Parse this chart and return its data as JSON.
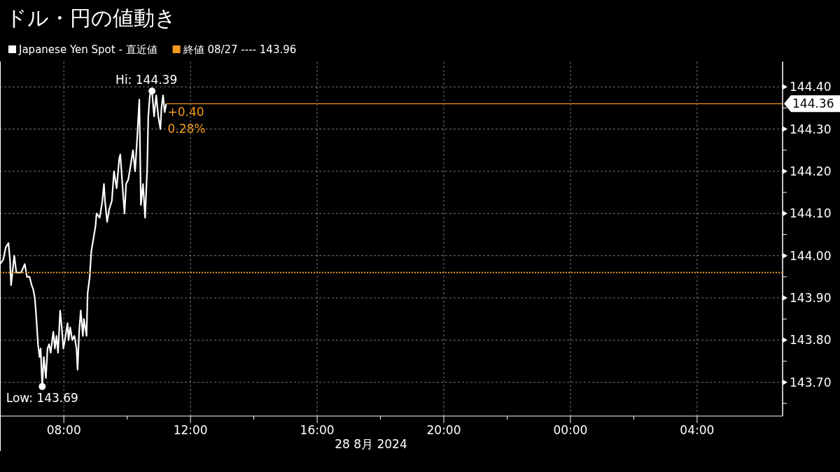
{
  "chart_data": {
    "type": "line",
    "title": "ドル・円の値動き",
    "xlabel": "28 8月 2024",
    "x": [
      "2024-08-28T05:59",
      "2024-08-28T06:05",
      "2024-08-28T06:10",
      "2024-08-28T06:15",
      "2024-08-28T06:18",
      "2024-08-28T06:20",
      "2024-08-28T06:26",
      "2024-08-28T06:30",
      "2024-08-28T06:39",
      "2024-08-28T06:46",
      "2024-08-28T06:50",
      "2024-08-28T06:55",
      "2024-08-28T06:59",
      "2024-08-28T07:02",
      "2024-08-28T07:05",
      "2024-08-28T07:08",
      "2024-08-28T07:11",
      "2024-08-28T07:14",
      "2024-08-28T07:16",
      "2024-08-28T07:19",
      "2024-08-28T07:22",
      "2024-08-28T07:26",
      "2024-08-28T07:29",
      "2024-08-28T07:32",
      "2024-08-28T07:35",
      "2024-08-28T07:40",
      "2024-08-28T07:43",
      "2024-08-28T07:46",
      "2024-08-28T07:49",
      "2024-08-28T07:53",
      "2024-08-28T07:56",
      "2024-08-28T07:59",
      "2024-08-28T08:02",
      "2024-08-28T08:07",
      "2024-08-28T08:09",
      "2024-08-28T08:12",
      "2024-08-28T08:16",
      "2024-08-28T08:20",
      "2024-08-28T08:24",
      "2024-08-28T08:26",
      "2024-08-28T08:29",
      "2024-08-28T08:32",
      "2024-08-28T08:36",
      "2024-08-28T08:38",
      "2024-08-28T08:43",
      "2024-08-28T08:45",
      "2024-08-28T08:49",
      "2024-08-28T08:52",
      "2024-08-28T08:56",
      "2024-08-28T09:00",
      "2024-08-28T09:02",
      "2024-08-28T09:08",
      "2024-08-28T09:13",
      "2024-08-28T09:16",
      "2024-08-28T09:18",
      "2024-08-28T09:22",
      "2024-08-28T09:26",
      "2024-08-28T09:31",
      "2024-08-28T09:35",
      "2024-08-28T09:40",
      "2024-08-28T09:45",
      "2024-08-28T09:47",
      "2024-08-28T09:52",
      "2024-08-28T09:55",
      "2024-08-28T09:58",
      "2024-08-28T10:02",
      "2024-08-28T10:06",
      "2024-08-28T10:11",
      "2024-08-28T10:15",
      "2024-08-28T10:19",
      "2024-08-28T10:23",
      "2024-08-28T10:26",
      "2024-08-28T10:30",
      "2024-08-28T10:34",
      "2024-08-28T10:38",
      "2024-08-28T10:40",
      "2024-08-28T10:43",
      "2024-08-28T10:47",
      "2024-08-28T10:51",
      "2024-08-28T10:55",
      "2024-08-28T10:59",
      "2024-08-28T11:03",
      "2024-08-28T11:05",
      "2024-08-28T11:08",
      "2024-08-28T11:11",
      "2024-08-28T11:14"
    ],
    "series": [
      {
        "name": "Japanese Yen Spot - 直近値",
        "color": "#ffffff",
        "values": [
          143.98,
          143.99,
          144.02,
          144.03,
          143.99,
          143.93,
          144.0,
          143.96,
          143.96,
          143.98,
          143.95,
          143.95,
          143.93,
          143.92,
          143.9,
          143.85,
          143.79,
          143.76,
          143.78,
          143.69,
          143.76,
          143.71,
          143.78,
          143.79,
          143.77,
          143.82,
          143.78,
          143.81,
          143.77,
          143.87,
          143.83,
          143.78,
          143.8,
          143.84,
          143.8,
          143.83,
          143.8,
          143.81,
          143.78,
          143.73,
          143.82,
          143.87,
          143.81,
          143.85,
          143.81,
          143.91,
          143.95,
          144.01,
          144.04,
          144.07,
          144.1,
          144.09,
          144.13,
          144.17,
          144.13,
          144.08,
          144.11,
          144.13,
          144.2,
          144.16,
          144.23,
          144.24,
          144.15,
          144.1,
          144.17,
          144.18,
          144.21,
          144.25,
          144.2,
          144.28,
          144.37,
          144.12,
          144.17,
          144.09,
          144.21,
          144.33,
          144.38,
          144.39,
          144.33,
          144.38,
          144.33,
          144.3,
          144.35,
          144.38,
          144.34,
          144.36
        ]
      }
    ],
    "xlim": [
      "2024-08-28T05:59",
      "2024-08-29T06:42"
    ],
    "ylim": [
      143.62,
      144.46
    ],
    "xticks": [
      {
        "value": "2024-08-28T08:00",
        "label": "08:00"
      },
      {
        "value": "2024-08-28T10:00",
        "label": null
      },
      {
        "value": "2024-08-28T12:00",
        "label": "12:00"
      },
      {
        "value": "2024-08-28T14:00",
        "label": null
      },
      {
        "value": "2024-08-28T16:00",
        "label": "16:00"
      },
      {
        "value": "2024-08-28T18:00",
        "label": null
      },
      {
        "value": "2024-08-28T20:00",
        "label": "20:00"
      },
      {
        "value": "2024-08-28T22:00",
        "label": null
      },
      {
        "value": "2024-08-29T00:00",
        "label": "00:00"
      },
      {
        "value": "2024-08-29T02:00",
        "label": null
      },
      {
        "value": "2024-08-29T04:00",
        "label": "04:00"
      }
    ],
    "yticks": [
      {
        "value": 144.4,
        "label": "144.40"
      },
      {
        "value": 144.35,
        "label": null
      },
      {
        "value": 144.3,
        "label": "144.30"
      },
      {
        "value": 144.25,
        "label": null
      },
      {
        "value": 144.2,
        "label": "144.20"
      },
      {
        "value": 144.15,
        "label": null
      },
      {
        "value": 144.1,
        "label": "144.10"
      },
      {
        "value": 144.05,
        "label": null
      },
      {
        "value": 144.0,
        "label": "144.00"
      },
      {
        "value": 143.95,
        "label": null
      },
      {
        "value": 143.9,
        "label": "143.90"
      },
      {
        "value": 143.85,
        "label": null
      },
      {
        "value": 143.8,
        "label": "143.80"
      },
      {
        "value": 143.75,
        "label": null
      },
      {
        "value": 143.7,
        "label": "143.70"
      },
      {
        "value": 143.65,
        "label": null
      }
    ],
    "ref_lines": [
      {
        "axis": "y",
        "value": 143.96,
        "label": "終値 08/27 ---- 143.96",
        "color": "#f39a1e",
        "line_style": "dotted"
      },
      {
        "axis": "y",
        "value": 144.36,
        "label": "144.36",
        "color": "#f39a1e",
        "line_style": "solid"
      }
    ],
    "annotations": [
      {
        "text": "Hi: 144.39",
        "x": "2024-08-28T10:47",
        "y": 144.39
      },
      {
        "text": "Low: 143.69",
        "x": "2024-08-28T07:19",
        "y": 143.69
      },
      {
        "text": "+0.40",
        "x": "2024-08-28T11:14",
        "y": 144.36
      },
      {
        "text": "0.28%",
        "x": "2024-08-28T11:14",
        "y": 144.36
      }
    ],
    "grid": true,
    "legend": "top left",
    "line_style": "solid",
    "marker": "none"
  }
}
